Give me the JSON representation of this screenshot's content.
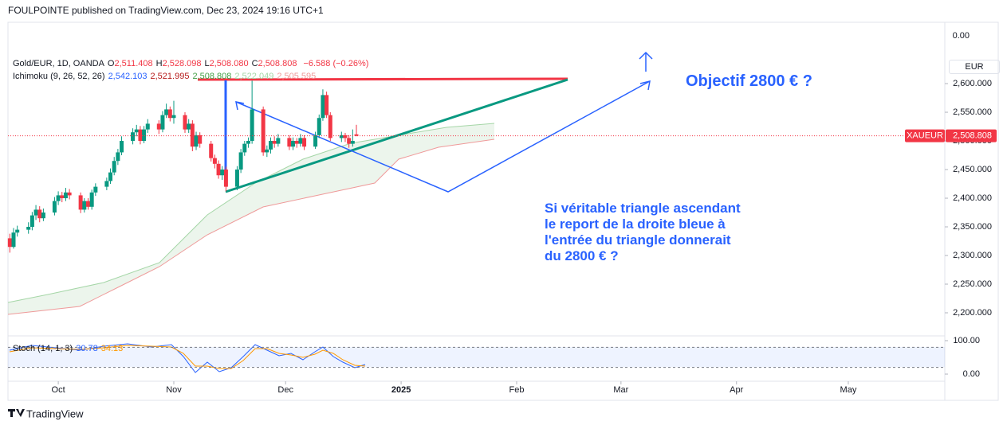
{
  "header": "FOULPOINTE published on TradingView.com, Dec 23, 2024 19:16 UTC+1",
  "footer": "TradingView",
  "chart_data": {
    "type": "candlestick",
    "symbol": "Gold/EUR, 1D, OANDA",
    "legend": [
      {
        "label": "O",
        "value": "2,511.408"
      },
      {
        "label": "H",
        "value": "2,528.098"
      },
      {
        "label": "L",
        "value": "2,508.080"
      },
      {
        "label": "C",
        "value": "2,508.808"
      }
    ],
    "change": "−6.588 (−0.26%)",
    "indicator": {
      "name": "Ichimoku (9, 26, 52, 26)",
      "values": [
        "2,542.103",
        "2,521.995",
        "2,508.808",
        "2,522.049",
        "2,505.595"
      ],
      "colors": [
        "#2962ff",
        "#b71c1c",
        "#43a047",
        "#a5d6a7",
        "#ef9a9a"
      ]
    },
    "currency": "EUR",
    "up_color": "#089981",
    "down_color": "#f23645",
    "x": [
      -12,
      -11,
      -10,
      -7,
      -6,
      -5,
      -4,
      -3,
      0,
      1,
      2,
      3,
      4,
      7,
      8,
      9,
      10,
      11,
      14,
      15,
      16,
      17,
      18,
      21,
      22,
      23,
      24,
      25,
      28,
      29,
      30,
      31,
      32,
      35,
      36,
      37,
      38,
      39,
      42,
      43,
      44,
      45,
      46,
      49,
      50,
      51,
      52,
      53,
      56,
      57,
      58,
      59,
      60,
      63,
      64,
      65,
      66,
      67,
      70,
      71,
      72,
      73,
      74,
      77,
      78,
      79,
      80,
      81
    ],
    "ohlc": [
      [
        2330,
        2338,
        2305,
        2315
      ],
      [
        2315,
        2348,
        2312,
        2340
      ],
      [
        2340,
        2352,
        2333,
        2345
      ],
      [
        2345,
        2358,
        2338,
        2350
      ],
      [
        2350,
        2376,
        2344,
        2370
      ],
      [
        2370,
        2388,
        2362,
        2380
      ],
      [
        2380,
        2386,
        2358,
        2365
      ],
      [
        2365,
        2382,
        2360,
        2375
      ],
      [
        2375,
        2402,
        2370,
        2395
      ],
      [
        2395,
        2412,
        2388,
        2405
      ],
      [
        2405,
        2411,
        2393,
        2400
      ],
      [
        2400,
        2418,
        2395,
        2410
      ],
      [
        2410,
        2416,
        2398,
        2405
      ],
      [
        2405,
        2410,
        2374,
        2380
      ],
      [
        2380,
        2400,
        2375,
        2395
      ],
      [
        2395,
        2400,
        2380,
        2385
      ],
      [
        2385,
        2415,
        2380,
        2410
      ],
      [
        2410,
        2426,
        2404,
        2420
      ],
      [
        2420,
        2436,
        2414,
        2430
      ],
      [
        2430,
        2452,
        2425,
        2445
      ],
      [
        2445,
        2472,
        2440,
        2465
      ],
      [
        2465,
        2486,
        2458,
        2480
      ],
      [
        2480,
        2508,
        2475,
        2500
      ],
      [
        2500,
        2522,
        2494,
        2515
      ],
      [
        2515,
        2528,
        2508,
        2520
      ],
      [
        2520,
        2526,
        2494,
        2500
      ],
      [
        2500,
        2526,
        2496,
        2520
      ],
      [
        2520,
        2538,
        2514,
        2530
      ],
      [
        2530,
        2536,
        2512,
        2520
      ],
      [
        2520,
        2552,
        2515,
        2545
      ],
      [
        2545,
        2565,
        2540,
        2555
      ],
      [
        2555,
        2560,
        2534,
        2540
      ],
      [
        2540,
        2570,
        2530,
        2545
      ],
      [
        2545,
        2550,
        2514,
        2520
      ],
      [
        2520,
        2538,
        2514,
        2530
      ],
      [
        2530,
        2536,
        2482,
        2490
      ],
      [
        2490,
        2516,
        2484,
        2510
      ],
      [
        2510,
        2515,
        2488,
        2495
      ],
      [
        2495,
        2500,
        2464,
        2470
      ],
      [
        2470,
        2476,
        2452,
        2460
      ],
      [
        2460,
        2466,
        2434,
        2440
      ],
      [
        2440,
        2456,
        2432,
        2450
      ],
      [
        2450,
        2455,
        2412,
        2420
      ],
      [
        2420,
        2456,
        2414,
        2450
      ],
      [
        2450,
        2486,
        2444,
        2480
      ],
      [
        2480,
        2500,
        2474,
        2495
      ],
      [
        2495,
        2506,
        2488,
        2500
      ],
      [
        2500,
        2605,
        2495,
        2555
      ],
      [
        2555,
        2560,
        2474,
        2480
      ],
      [
        2480,
        2492,
        2472,
        2485
      ],
      [
        2485,
        2506,
        2478,
        2500
      ],
      [
        2500,
        2508,
        2488,
        2495
      ],
      [
        2495,
        2512,
        2490,
        2505
      ],
      [
        2505,
        2510,
        2484,
        2490
      ],
      [
        2490,
        2506,
        2484,
        2500
      ],
      [
        2500,
        2505,
        2488,
        2495
      ],
      [
        2495,
        2512,
        2490,
        2505
      ],
      [
        2505,
        2510,
        2484,
        2490
      ],
      [
        2490,
        2516,
        2486,
        2510
      ],
      [
        2510,
        2546,
        2505,
        2540
      ],
      [
        2540,
        2590,
        2535,
        2580
      ],
      [
        2580,
        2586,
        2540,
        2545
      ],
      [
        2545,
        2550,
        2500,
        2505
      ],
      [
        2505,
        2516,
        2498,
        2510
      ],
      [
        2510,
        2514,
        2498,
        2505
      ],
      [
        2505,
        2510,
        2488,
        2495
      ],
      [
        2495,
        2520,
        2490,
        2500
      ],
      [
        2511.408,
        2528.098,
        2508.08,
        2508.808
      ]
    ],
    "xlim": [
      -12.5,
      238.9
    ],
    "xticks": [
      {
        "value": 1,
        "label": "Oct"
      },
      {
        "value": 32,
        "label": "Nov"
      },
      {
        "value": 62,
        "label": "Dec"
      },
      {
        "value": 93,
        "label": "2025"
      },
      {
        "value": 124,
        "label": "Feb"
      },
      {
        "value": 152,
        "label": "Mar"
      },
      {
        "value": 183,
        "label": "Apr"
      },
      {
        "value": 213,
        "label": "May"
      }
    ],
    "ylim": [
      2162.5,
      2707
    ],
    "yticks": [
      {
        "value": 2200,
        "label": "2,200.000"
      },
      {
        "value": 2250,
        "label": "2,250.000"
      },
      {
        "value": 2300,
        "label": "2,300.000"
      },
      {
        "value": 2350,
        "label": "2,350.000"
      },
      {
        "value": 2400,
        "label": "2,400.000"
      },
      {
        "value": 2450,
        "label": "2,450.000"
      },
      {
        "value": 2500,
        "label": "2,500.000"
      },
      {
        "value": 2550,
        "label": "2,550.000"
      },
      {
        "value": 2600,
        "label": "2,600.000"
      }
    ],
    "overlay_tick": "0.00",
    "last_price": {
      "name": "XAUEUR",
      "value": 2508.808,
      "label": "2,508.808"
    },
    "annotations": {
      "objective": "Objectif 2800 € ?",
      "comment": [
        "Si véritable triangle ascendant",
        "le report de la droite bleue à",
        "l'entrée du triangle donnerait",
        "du 2800 € ?"
      ]
    },
    "stoch": {
      "name": "Stoch (14, 1, 3)",
      "values": [
        "30.78",
        "34.13"
      ],
      "colors": [
        "#2962ff",
        "#ff9800"
      ],
      "ylim": [
        -19,
        114.3
      ],
      "yticks": [
        {
          "value": 100,
          "label": "100.00"
        },
        {
          "value": 0,
          "label": "0.00"
        }
      ],
      "bands": [
        80,
        20
      ]
    }
  }
}
